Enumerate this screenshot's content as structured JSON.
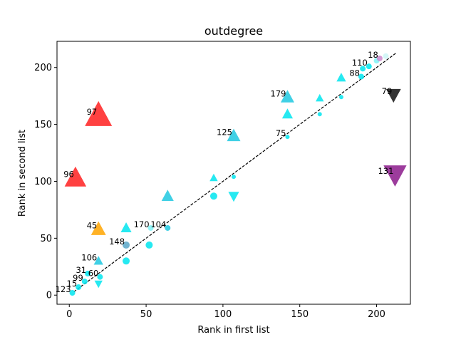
{
  "chart_data": {
    "type": "scatter",
    "title": "outdegree",
    "xlabel": "Rank in first list",
    "ylabel": "Rank in second list",
    "xlim": [
      -8,
      222
    ],
    "ylim": [
      -8,
      223
    ],
    "xticks": [
      0,
      50,
      100,
      150,
      200
    ],
    "yticks": [
      0,
      50,
      100,
      150,
      200
    ],
    "grid": false,
    "colors": {
      "cyan": "#00e5ee",
      "red": "#ff2020",
      "orange": "#ffa500",
      "purple": "#8b1a8b",
      "black": "#111111"
    },
    "diagonal": {
      "style": "dashed",
      "from": [
        3,
        3
      ],
      "to": [
        213,
        213
      ]
    },
    "points": [
      {
        "x": 2,
        "y": 2,
        "shape": "circle",
        "size": 4,
        "color": "#00e5ee",
        "label": "123"
      },
      {
        "x": 6,
        "y": 7,
        "shape": "circle",
        "size": 4,
        "color": "#00e5ee",
        "label": "15"
      },
      {
        "x": 10,
        "y": 12,
        "shape": "circle",
        "size": 4,
        "color": "#00e5ee",
        "label": "99"
      },
      {
        "x": 12,
        "y": 19,
        "shape": "circle",
        "size": 4,
        "color": "#00e5ee",
        "label": "31"
      },
      {
        "x": 20,
        "y": 16,
        "shape": "circle",
        "size": 4,
        "color": "#00e5ee",
        "label": "60"
      },
      {
        "x": 19,
        "y": 10,
        "shape": "triangle-down",
        "size": 6,
        "color": "#00e5ee",
        "label": ""
      },
      {
        "x": 19,
        "y": 30,
        "shape": "triangle-up",
        "size": 7,
        "color": "#1ec8e0",
        "label": "106"
      },
      {
        "x": 19,
        "y": 58,
        "shape": "triangle-up",
        "size": 11,
        "color": "#ffa500",
        "label": "45"
      },
      {
        "x": 4,
        "y": 103,
        "shape": "triangle-up",
        "size": 16,
        "color": "#ff2020",
        "label": "96"
      },
      {
        "x": 19,
        "y": 158,
        "shape": "triangle-up",
        "size": 20,
        "color": "#ff2020",
        "label": "97"
      },
      {
        "x": 37,
        "y": 44,
        "shape": "circle",
        "size": 5,
        "color": "#5aa7c8",
        "label": "148"
      },
      {
        "x": 37,
        "y": 30,
        "shape": "circle",
        "size": 5,
        "color": "#00e5ee",
        "label": ""
      },
      {
        "x": 37,
        "y": 59,
        "shape": "triangle-up",
        "size": 8,
        "color": "#00e5ee",
        "label": ""
      },
      {
        "x": 52,
        "y": 44,
        "shape": "circle",
        "size": 5,
        "color": "#00e5ee",
        "label": ""
      },
      {
        "x": 53,
        "y": 59,
        "shape": "circle",
        "size": 4,
        "color": "#7ff2f6",
        "label": "170"
      },
      {
        "x": 64,
        "y": 59,
        "shape": "circle",
        "size": 4,
        "color": "#1ec8e0",
        "label": "104"
      },
      {
        "x": 64,
        "y": 87,
        "shape": "triangle-up",
        "size": 9,
        "color": "#1ec8e0",
        "label": ""
      },
      {
        "x": 94,
        "y": 87,
        "shape": "circle",
        "size": 5,
        "color": "#00e5ee",
        "label": ""
      },
      {
        "x": 94,
        "y": 103,
        "shape": "triangle-up",
        "size": 6,
        "color": "#00e5ee",
        "label": ""
      },
      {
        "x": 107,
        "y": 104,
        "shape": "circle",
        "size": 3,
        "color": "#00e5ee",
        "label": ""
      },
      {
        "x": 107,
        "y": 87,
        "shape": "triangle-down",
        "size": 8,
        "color": "#00e5ee",
        "label": ""
      },
      {
        "x": 107,
        "y": 140,
        "shape": "triangle-up",
        "size": 10,
        "color": "#1ec8e0",
        "label": "125"
      },
      {
        "x": 142,
        "y": 139,
        "shape": "circle",
        "size": 3,
        "color": "#00e5ee",
        "label": "75"
      },
      {
        "x": 142,
        "y": 159,
        "shape": "triangle-up",
        "size": 8,
        "color": "#00e5ee",
        "label": ""
      },
      {
        "x": 142,
        "y": 174,
        "shape": "triangle-up",
        "size": 10,
        "color": "#1ec8e0",
        "label": "179"
      },
      {
        "x": 163,
        "y": 159,
        "shape": "circle",
        "size": 3,
        "color": "#00e5ee",
        "label": ""
      },
      {
        "x": 163,
        "y": 173,
        "shape": "triangle-up",
        "size": 6,
        "color": "#00e5ee",
        "label": ""
      },
      {
        "x": 177,
        "y": 174,
        "shape": "circle",
        "size": 3,
        "color": "#00e5ee",
        "label": ""
      },
      {
        "x": 177,
        "y": 191,
        "shape": "triangle-up",
        "size": 7,
        "color": "#00e5ee",
        "label": ""
      },
      {
        "x": 190,
        "y": 192,
        "shape": "circle",
        "size": 4,
        "color": "#00e5ee",
        "label": "88"
      },
      {
        "x": 191,
        "y": 199,
        "shape": "circle",
        "size": 4,
        "color": "#00e5ee",
        "label": ""
      },
      {
        "x": 195,
        "y": 201,
        "shape": "circle",
        "size": 4,
        "color": "#00e5ee",
        "label": "110"
      },
      {
        "x": 200,
        "y": 206,
        "shape": "circle",
        "size": 4,
        "color": "#7ff2f6",
        "label": ""
      },
      {
        "x": 202,
        "y": 208,
        "shape": "circle",
        "size": 4,
        "color": "#cc88cc",
        "label": "18"
      },
      {
        "x": 206,
        "y": 210,
        "shape": "circle",
        "size": 4,
        "color": "#cdf4f6",
        "label": ""
      },
      {
        "x": 211,
        "y": 176,
        "shape": "triangle-down",
        "size": 11,
        "color": "#111111",
        "label": "79"
      },
      {
        "x": 212,
        "y": 106,
        "shape": "triangle-down",
        "size": 17,
        "color": "#8b1a8b",
        "label": "131"
      }
    ]
  }
}
